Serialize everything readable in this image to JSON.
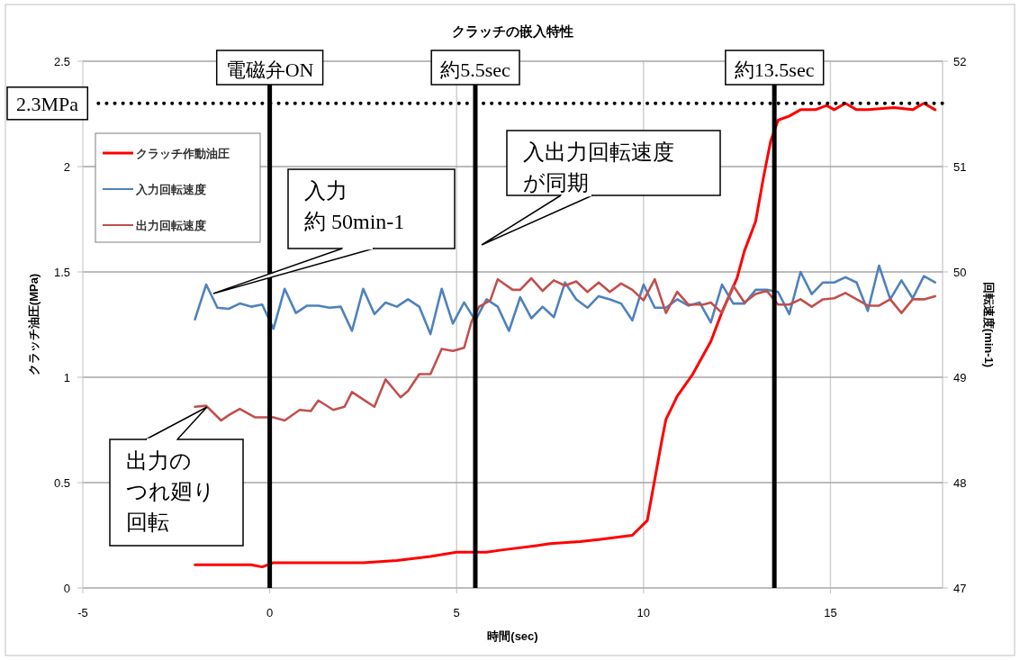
{
  "chart_data": {
    "type": "line",
    "title": "クラッチの嵌入特性",
    "xlabel": "時間(sec)",
    "ylabel": "クラッチ油圧(MPa)",
    "y2label": "回転速度(min-1)",
    "xlim": [
      -5,
      18
    ],
    "xticks": [
      -5,
      0,
      5,
      10,
      15
    ],
    "ylim": [
      0,
      2.5
    ],
    "yticks": [
      0,
      0.5,
      1,
      1.5,
      2,
      2.5
    ],
    "y2lim": [
      47,
      52
    ],
    "y2ticks": [
      47,
      48,
      49,
      50,
      51,
      52
    ],
    "grid": true,
    "legend": "top left",
    "series": [
      {
        "name": "クラッチ作動油圧",
        "color": "#ff0000",
        "x": [
          -2,
          -0.5,
          -0.2,
          0.1,
          0.5,
          1.4,
          2.5,
          3.4,
          4.3,
          5.0,
          5.8,
          6.2,
          7.1,
          7.5,
          8.3,
          8.8,
          9.7,
          10.1,
          10.5,
          10.6,
          10.9,
          11.3,
          11.8,
          12.1,
          12.5,
          12.7,
          13.0,
          13.2,
          13.4,
          13.6,
          13.9,
          14.2,
          14.6,
          14.9,
          15.1,
          15.4,
          15.7,
          16.0,
          16.7,
          17.2,
          17.5,
          17.8
        ],
        "values": [
          0.11,
          0.11,
          0.1,
          0.12,
          0.12,
          0.12,
          0.12,
          0.13,
          0.15,
          0.17,
          0.17,
          0.18,
          0.2,
          0.21,
          0.22,
          0.23,
          0.25,
          0.32,
          0.71,
          0.8,
          0.91,
          1.01,
          1.17,
          1.31,
          1.47,
          1.6,
          1.74,
          1.94,
          2.12,
          2.22,
          2.24,
          2.27,
          2.27,
          2.29,
          2.27,
          2.3,
          2.27,
          2.27,
          2.28,
          2.27,
          2.3,
          2.27
        ]
      },
      {
        "name": "入力回転速度",
        "color": "#4f81bd",
        "axis": "y2",
        "x": [
          -2,
          -1.7,
          -1.4,
          -1.1,
          -0.8,
          -0.5,
          -0.2,
          0.1,
          0.4,
          0.7,
          1,
          1.3,
          1.6,
          1.9,
          2.2,
          2.5,
          2.8,
          3.1,
          3.4,
          3.7,
          4,
          4.3,
          4.6,
          4.9,
          5.2,
          5.5,
          5.8,
          6.1,
          6.4,
          6.7,
          7,
          7.3,
          7.6,
          7.9,
          8.2,
          8.5,
          8.8,
          9.1,
          9.4,
          9.7,
          10,
          10.3,
          10.6,
          10.9,
          11.2,
          11.5,
          11.8,
          12.1,
          12.4,
          12.7,
          13,
          13.3,
          13.6,
          13.9,
          14.2,
          14.5,
          14.8,
          15.1,
          15.4,
          15.7,
          16,
          16.3,
          16.6,
          16.9,
          17.2,
          17.5,
          17.8
        ],
        "values": [
          49.55,
          49.88,
          49.66,
          49.65,
          49.7,
          49.67,
          49.69,
          49.46,
          49.84,
          49.61,
          49.68,
          49.68,
          49.66,
          49.67,
          49.44,
          49.84,
          49.6,
          49.71,
          49.67,
          49.74,
          49.67,
          49.41,
          49.84,
          49.51,
          49.71,
          49.54,
          49.74,
          49.67,
          49.44,
          49.76,
          49.56,
          49.67,
          49.57,
          49.9,
          49.74,
          49.66,
          49.77,
          49.74,
          49.7,
          49.54,
          49.88,
          49.66,
          49.66,
          49.74,
          49.68,
          49.71,
          49.52,
          49.88,
          49.7,
          49.7,
          49.83,
          49.83,
          49.81,
          49.6,
          50.0,
          49.79,
          49.9,
          49.9,
          49.95,
          49.9,
          49.63,
          50.06,
          49.74,
          49.92,
          49.75,
          49.96,
          49.9
        ]
      },
      {
        "name": "出力回転速度",
        "color": "#c0504d",
        "axis": "y2",
        "x": [
          -2,
          -1.7,
          -1.3,
          -1.1,
          -0.8,
          -0.4,
          0.1,
          0.4,
          0.8,
          1.1,
          1.3,
          1.7,
          2.0,
          2.2,
          2.5,
          2.8,
          3.1,
          3.5,
          3.7,
          4.0,
          4.3,
          4.6,
          4.9,
          5.2,
          5.4,
          5.6,
          5.9,
          6.1,
          6.5,
          6.7,
          7.0,
          7.3,
          7.6,
          7.9,
          8.2,
          8.5,
          8.8,
          9.1,
          9.4,
          9.7,
          10.0,
          10.3,
          10.6,
          10.9,
          11.2,
          11.6,
          11.8,
          12.1,
          12.4,
          12.7,
          13.0,
          13.3,
          13.6,
          13.9,
          14.2,
          14.5,
          14.8,
          15.1,
          15.4,
          15.7,
          16.0,
          16.3,
          16.6,
          16.9,
          17.2,
          17.5,
          17.8
        ],
        "values": [
          48.72,
          48.73,
          48.59,
          48.64,
          48.7,
          48.62,
          48.62,
          48.59,
          48.69,
          48.68,
          48.78,
          48.69,
          48.72,
          48.86,
          48.79,
          48.72,
          48.98,
          48.81,
          48.87,
          49.03,
          49.03,
          49.27,
          49.25,
          49.28,
          49.53,
          49.67,
          49.73,
          49.93,
          49.83,
          49.83,
          49.94,
          49.82,
          49.92,
          49.87,
          49.91,
          49.81,
          49.9,
          49.81,
          49.89,
          49.83,
          49.73,
          49.93,
          49.61,
          49.81,
          49.69,
          49.69,
          49.71,
          49.61,
          49.87,
          49.71,
          49.79,
          49.82,
          49.69,
          49.69,
          49.74,
          49.67,
          49.74,
          49.75,
          49.8,
          49.74,
          49.68,
          49.68,
          49.74,
          49.61,
          49.74,
          49.74,
          49.77
        ]
      }
    ],
    "ref_lines": [
      {
        "axis": "x",
        "value": 0,
        "label": "電磁弁ON",
        "color": "#000000",
        "line_style": "solid"
      },
      {
        "axis": "x",
        "value": 5.5,
        "label": "約5.5sec",
        "color": "#000000",
        "line_style": "solid"
      },
      {
        "axis": "x",
        "value": 13.5,
        "label": "約13.5sec",
        "color": "#000000",
        "line_style": "solid"
      },
      {
        "axis": "y",
        "value": 2.3,
        "label": "2.3MPa",
        "color": "#000000",
        "line_style": "dotted"
      }
    ],
    "annotations": [
      "入力約 50min-1",
      "入出力回転速度が同期",
      "出力のつれ廻り回転"
    ]
  }
}
